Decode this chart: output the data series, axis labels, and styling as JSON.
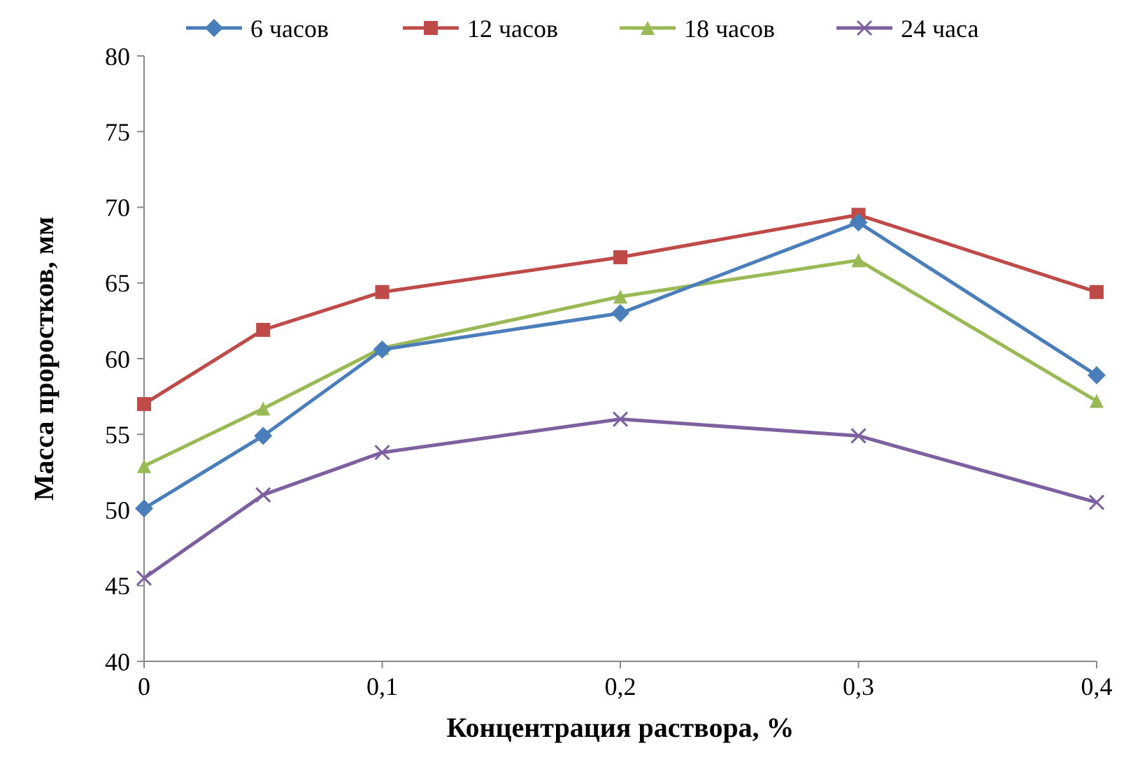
{
  "chart_data": {
    "type": "line",
    "xlabel": "Концентрация раствора, %",
    "ylabel": "Масса проростков, мм",
    "x": [
      0,
      0.05,
      0.1,
      0.2,
      0.3,
      0.4
    ],
    "xlim": [
      0,
      0.4
    ],
    "xticks": [
      {
        "value": 0,
        "label": "0"
      },
      {
        "value": 0.1,
        "label": "0,1"
      },
      {
        "value": 0.2,
        "label": "0,2"
      },
      {
        "value": 0.3,
        "label": "0,3"
      },
      {
        "value": 0.4,
        "label": "0,4"
      }
    ],
    "ylim": [
      40,
      80
    ],
    "yticks": [
      40,
      45,
      50,
      55,
      60,
      65,
      70,
      75,
      80
    ],
    "grid": false,
    "legend": "top",
    "line_style": "solid",
    "series": [
      {
        "name": "6 часов",
        "color": "#4a7ebb",
        "marker": "diamond",
        "values": [
          50.1,
          54.9,
          60.6,
          63.0,
          69.0,
          58.9
        ]
      },
      {
        "name": "12 часов",
        "color": "#be4b48",
        "marker": "square",
        "values": [
          57.0,
          61.9,
          64.4,
          66.7,
          69.5,
          64.4
        ]
      },
      {
        "name": "18 часов",
        "color": "#98b954",
        "marker": "triangle",
        "values": [
          52.9,
          56.7,
          60.7,
          64.1,
          66.5,
          57.2
        ]
      },
      {
        "name": "24 часа",
        "color": "#7d60a0",
        "marker": "cross",
        "values": [
          45.5,
          51.0,
          53.8,
          56.0,
          54.9,
          50.5
        ]
      }
    ]
  }
}
